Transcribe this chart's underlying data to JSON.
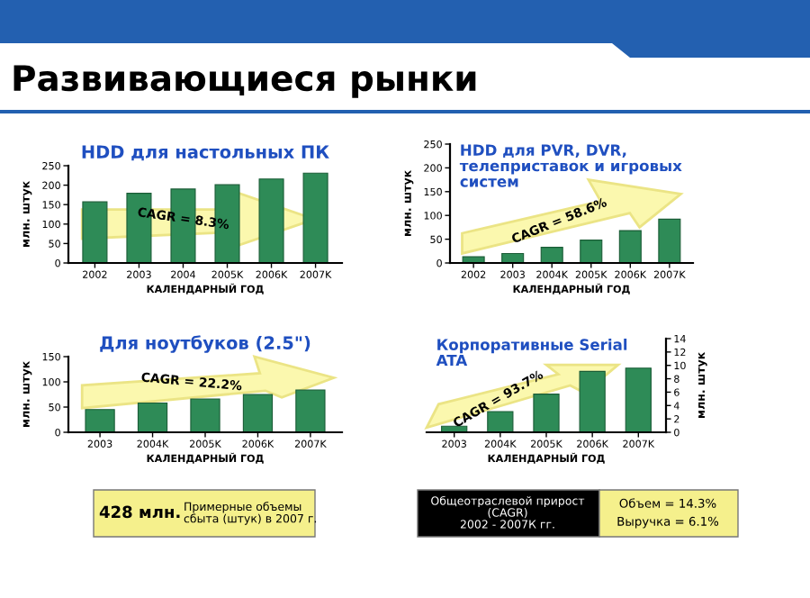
{
  "chart_data": [
    {
      "type": "other",
      "title": "Развивающиеся рынки",
      "annotations": [
        "428 млн.",
        "Примерные объемы сбыта (штук) в 2007 г.",
        "Общеотраслевой прирост (CAGR) 2002 - 2007К гг.",
        "Объем = 14.3%",
        "Выручка = 6.1%"
      ]
    },
    {
      "type": "bar",
      "title": "HDD для настольных ПК",
      "xlabel": "КАЛЕНДАРНЫЙ ГОД",
      "ylabel": "млн. штук",
      "categories": [
        "2002",
        "2003",
        "2004",
        "2005K",
        "2006K",
        "2007K"
      ],
      "series": [
        {
          "color": "#2e8b57",
          "values": [
            157,
            179,
            190,
            201,
            216,
            231
          ]
        }
      ],
      "ylim": [
        0,
        250
      ],
      "yticks": [
        0,
        50,
        100,
        150,
        200,
        250
      ],
      "annotations": [
        "CAGR = 8.3%"
      ]
    },
    {
      "type": "bar",
      "title": "HDD для PVR, DVR,\nтелеприставок и игровых\nсистем",
      "xlabel": "КАЛЕНДАРНЫЙ ГОД",
      "ylabel": "млн. штук",
      "categories": [
        "2002",
        "2003",
        "2004K",
        "2005K",
        "2006K",
        "2007K"
      ],
      "series": [
        {
          "color": "#2e8b57",
          "values": [
            13,
            20,
            33,
            48,
            68,
            92
          ]
        }
      ],
      "ylim": [
        0,
        250
      ],
      "yticks": [
        0,
        50,
        100,
        150,
        200,
        250
      ],
      "annotations": [
        "CAGR = 58.6%"
      ]
    },
    {
      "type": "bar",
      "title": "Для ноутбуков (2.5\")",
      "xlabel": "КАЛЕНДАРНЫЙ ГОД",
      "ylabel": "млн. штук",
      "categories": [
        "2003",
        "2004K",
        "2005K",
        "2006K",
        "2007K"
      ],
      "series": [
        {
          "color": "#2e8b57",
          "values": [
            45,
            58,
            66,
            75,
            84
          ]
        }
      ],
      "ylim": [
        0,
        150
      ],
      "yticks": [
        0,
        50,
        100,
        150
      ],
      "annotations": [
        "CAGR = 22.2%"
      ]
    },
    {
      "type": "bar",
      "title": "Корпоративные Serial\nATA",
      "xlabel": "КАЛЕНДАРНЫЙ ГОД",
      "y2label": "млн. штук",
      "categories": [
        "2003",
        "2004K",
        "2005K",
        "2006K",
        "2007K"
      ],
      "series": [
        {
          "color": "#2e8b57",
          "values": [
            0.9,
            3.1,
            5.7,
            9.1,
            9.6
          ],
          "axis": "y2"
        }
      ],
      "y2lim": [
        0,
        14
      ],
      "y2ticks": [
        0,
        2,
        4,
        6,
        8,
        10,
        12,
        14
      ],
      "annotations": [
        "CAGR = 93.7%"
      ]
    }
  ]
}
